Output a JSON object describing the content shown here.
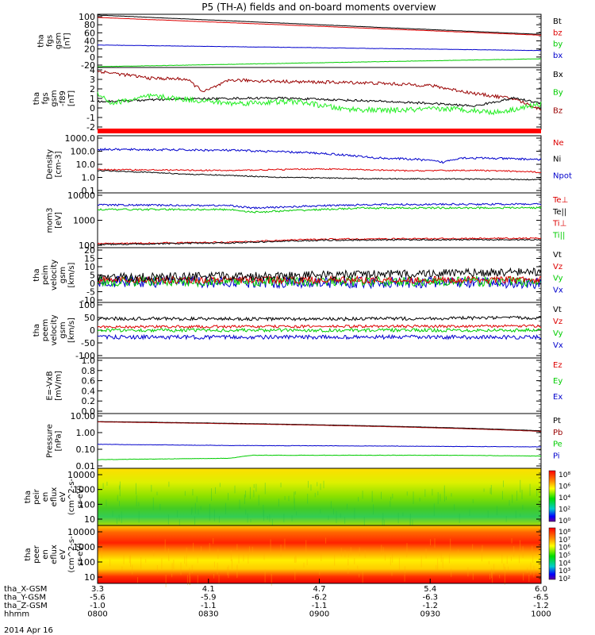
{
  "title": "P5 (TH-A) fields and on-board moments overview",
  "colors": {
    "black": "#000000",
    "red": "#dd0000",
    "dark_red": "#990000",
    "green": "#00cc00",
    "bright_green": "#22ee22",
    "blue": "#0000cc"
  },
  "chart_data": [
    {
      "id": "fgs",
      "type": "line",
      "ylabel": [
        "tha",
        "fgs",
        "gsm",
        "[nT]"
      ],
      "yticks": [
        "100",
        "80",
        "60",
        "40",
        "20",
        "0",
        "-20"
      ],
      "ylim": [
        -30,
        105
      ],
      "legend": [
        {
          "name": "Bt",
          "color": "#000000"
        },
        {
          "name": "bz",
          "color": "#dd0000"
        },
        {
          "name": "by",
          "color": "#00cc00"
        },
        {
          "name": "bx",
          "color": "#0000cc"
        }
      ],
      "series": [
        {
          "name": "Bt",
          "color": "#000000",
          "start": 103,
          "end": 54,
          "noise": 0.3
        },
        {
          "name": "bz",
          "color": "#dd0000",
          "start": 97,
          "end": 52,
          "noise": 0.3
        },
        {
          "name": "bx",
          "color": "#0000cc",
          "start": 27,
          "end": 13,
          "noise": 0.4
        },
        {
          "name": "by",
          "color": "#00cc00",
          "start": -28,
          "end": -8,
          "noise": 0.4
        }
      ]
    },
    {
      "id": "fgs_rel",
      "type": "line",
      "ylabel": [
        "tha",
        "fgs",
        "gsm",
        "-f89",
        "[nT]"
      ],
      "yticks": [
        "4",
        "3",
        "2",
        "1",
        "0",
        "-1",
        "-2"
      ],
      "ylim": [
        -2.6,
        4.3
      ],
      "legend": [
        {
          "name": "Bx",
          "color": "#000000"
        },
        {
          "name": "By",
          "color": "#00cc00"
        },
        {
          "name": "Bz",
          "color": "#990000"
        }
      ],
      "series": [
        {
          "name": "Bz",
          "color": "#990000",
          "points": [
            [
              0,
              3.9
            ],
            [
              0.12,
              3.1
            ],
            [
              0.2,
              3.0
            ],
            [
              0.24,
              1.6
            ],
            [
              0.3,
              2.9
            ],
            [
              0.45,
              2.7
            ],
            [
              0.6,
              2.6
            ],
            [
              0.75,
              2.3
            ],
            [
              0.85,
              1.4
            ],
            [
              0.94,
              0.8
            ],
            [
              1,
              -0.4
            ]
          ],
          "noise": 0.18
        },
        {
          "name": "Bx",
          "color": "#000000",
          "points": [
            [
              0,
              0.5
            ],
            [
              0.2,
              0.8
            ],
            [
              0.4,
              0.9
            ],
            [
              0.6,
              0.6
            ],
            [
              0.75,
              0.3
            ],
            [
              0.85,
              0.0
            ],
            [
              0.94,
              0.9
            ],
            [
              1,
              0.3
            ]
          ],
          "noise": 0.12
        },
        {
          "name": "By",
          "color": "#22ee22",
          "points": [
            [
              0,
              1.5
            ],
            [
              0.03,
              0.3
            ],
            [
              0.12,
              1.1
            ],
            [
              0.3,
              0.3
            ],
            [
              0.45,
              0.5
            ],
            [
              0.55,
              -0.3
            ],
            [
              0.65,
              -0.5
            ],
            [
              0.8,
              -0.3
            ],
            [
              0.9,
              -0.7
            ],
            [
              1,
              0.2
            ]
          ],
          "noise": 0.3
        }
      ]
    },
    {
      "id": "density",
      "type": "line",
      "log": true,
      "ylabel": [
        "Density",
        "[cm-3]"
      ],
      "yticks": [
        "1000.0",
        "100.0",
        "10.0",
        "1.0",
        "0.1"
      ],
      "ylim": [
        0.08,
        2000
      ],
      "legend": [
        {
          "name": "Ne",
          "color": "#dd0000"
        },
        {
          "name": "Ni",
          "color": "#000000"
        },
        {
          "name": "Npot",
          "color": "#0000cc"
        }
      ],
      "series": [
        {
          "name": "Npot",
          "color": "#0000cc",
          "points": [
            [
              0,
              180
            ],
            [
              0.3,
              150
            ],
            [
              0.5,
              90
            ],
            [
              0.62,
              40
            ],
            [
              0.72,
              30
            ],
            [
              0.78,
              18
            ],
            [
              0.82,
              40
            ],
            [
              1,
              30
            ]
          ],
          "noise": 0.08
        },
        {
          "name": "Ne",
          "color": "#dd0000",
          "points": [
            [
              0,
              5
            ],
            [
              0.3,
              4.2
            ],
            [
              0.5,
              5.6
            ],
            [
              0.7,
              4.0
            ],
            [
              0.85,
              4.4
            ],
            [
              1,
              3.1
            ]
          ],
          "noise": 0.05
        },
        {
          "name": "Ni",
          "color": "#000000",
          "points": [
            [
              0,
              4.2
            ],
            [
              0.2,
              2.2
            ],
            [
              0.4,
              1.3
            ],
            [
              0.6,
              1.0
            ],
            [
              0.8,
              0.95
            ],
            [
              1,
              0.85
            ]
          ],
          "noise": 0.04
        }
      ]
    },
    {
      "id": "temp",
      "type": "line",
      "log": true,
      "ylabel": [
        "mom3",
        "[eV]"
      ],
      "yticks": [
        "10000",
        "1000",
        "100"
      ],
      "ylim": [
        40,
        11000
      ],
      "legend": [
        {
          "name": "Te⊥",
          "color": "#dd0000"
        },
        {
          "name": "Te||",
          "color": "#000000"
        },
        {
          "name": "Ti⊥",
          "color": "#dd0000"
        },
        {
          "name": "Ti||",
          "color": "#00cc00"
        }
      ],
      "series": [
        {
          "name": "Ti⊥",
          "color": "#0000cc",
          "points": [
            [
              0,
              3200
            ],
            [
              0.3,
              3000
            ],
            [
              0.35,
              2300
            ],
            [
              0.6,
              3300
            ],
            [
              1,
              3500
            ]
          ],
          "noise": 0.04
        },
        {
          "name": "Ti||",
          "color": "#00cc00",
          "points": [
            [
              0,
              2000
            ],
            [
              0.3,
              2000
            ],
            [
              0.35,
              1500
            ],
            [
              0.6,
              2300
            ],
            [
              1,
              2400
            ]
          ],
          "noise": 0.04
        },
        {
          "name": "Te⊥",
          "color": "#dd0000",
          "points": [
            [
              0,
              60
            ],
            [
              0.3,
              70
            ],
            [
              0.5,
              95
            ],
            [
              0.7,
              100
            ],
            [
              1,
              105
            ]
          ],
          "noise": 0.03
        },
        {
          "name": "Te||",
          "color": "#000000",
          "points": [
            [
              0,
              55
            ],
            [
              0.3,
              65
            ],
            [
              0.5,
              85
            ],
            [
              0.7,
              90
            ],
            [
              1,
              90
            ]
          ],
          "noise": 0.03
        }
      ]
    },
    {
      "id": "peim",
      "type": "line",
      "ylabel": [
        "tha",
        "peim",
        "velocity",
        "gsm",
        "[km/s]"
      ],
      "yticks": [
        "20",
        "15",
        "10",
        "5",
        "0",
        "-5",
        "-10"
      ],
      "ylim": [
        -12,
        22
      ],
      "legend": [
        {
          "name": "Vt",
          "color": "#000000"
        },
        {
          "name": "Vz",
          "color": "#dd0000"
        },
        {
          "name": "Vy",
          "color": "#00cc00"
        },
        {
          "name": "Vx",
          "color": "#0000cc"
        }
      ],
      "series": [
        {
          "name": "Vx",
          "color": "#0000cc",
          "points": [
            [
              0,
              1
            ],
            [
              1,
              0
            ]
          ],
          "noise": 3.5
        },
        {
          "name": "Vy",
          "color": "#00cc00",
          "points": [
            [
              0,
              1
            ],
            [
              1,
              1
            ]
          ],
          "noise": 3.0
        },
        {
          "name": "Vz",
          "color": "#dd0000",
          "points": [
            [
              0,
              2
            ],
            [
              1,
              2
            ]
          ],
          "noise": 2.2
        },
        {
          "name": "Vt",
          "color": "#000000",
          "points": [
            [
              0,
              3.5
            ],
            [
              0.5,
              5
            ],
            [
              1,
              7
            ]
          ],
          "noise": 2.6
        }
      ]
    },
    {
      "id": "peem",
      "type": "line",
      "ylabel": [
        "tha",
        "peem",
        "velocity",
        "gsm",
        "[km/s]"
      ],
      "yticks": [
        "100",
        "50",
        "0",
        "-50",
        "-100"
      ],
      "ylim": [
        -100,
        100
      ],
      "legend": [
        {
          "name": "Vt",
          "color": "#000000"
        },
        {
          "name": "Vz",
          "color": "#dd0000"
        },
        {
          "name": "Vy",
          "color": "#00cc00"
        },
        {
          "name": "Vx",
          "color": "#0000cc"
        }
      ],
      "series": [
        {
          "name": "Vx",
          "color": "#0000cc",
          "points": [
            [
              0,
              -25
            ],
            [
              1,
              -25
            ]
          ],
          "noise": 7
        },
        {
          "name": "Vy",
          "color": "#00cc00",
          "points": [
            [
              0,
              0
            ],
            [
              1,
              0
            ]
          ],
          "noise": 6
        },
        {
          "name": "Vz",
          "color": "#dd0000",
          "points": [
            [
              0,
              12
            ],
            [
              1,
              15
            ]
          ],
          "noise": 5
        },
        {
          "name": "Vt",
          "color": "#000000",
          "points": [
            [
              0,
              42
            ],
            [
              0.5,
              40
            ],
            [
              1,
              45
            ]
          ],
          "noise": 6
        }
      ]
    },
    {
      "id": "efield",
      "type": "line",
      "ylabel": [
        "E=-VxB",
        "[mV/m]"
      ],
      "yticks": [
        "1.0",
        "0.8",
        "0.6",
        "0.4",
        "0.2",
        "0.0"
      ],
      "ylim": [
        0,
        1
      ],
      "legend": [
        {
          "name": "Ez",
          "color": "#dd0000"
        },
        {
          "name": "Ey",
          "color": "#00cc00"
        },
        {
          "name": "Ex",
          "color": "#0000cc"
        }
      ],
      "series": []
    },
    {
      "id": "pressure",
      "type": "line",
      "log": true,
      "ylabel": [
        "Pressure",
        "[nPa]"
      ],
      "yticks": [
        "10.00",
        "1.00",
        "0.10",
        "0.01"
      ],
      "ylim": [
        0.009,
        12
      ],
      "legend": [
        {
          "name": "Pt",
          "color": "#000000"
        },
        {
          "name": "Pb",
          "color": "#990000"
        },
        {
          "name": "Pe",
          "color": "#00cc00"
        },
        {
          "name": "Pi",
          "color": "#0000cc"
        }
      ],
      "series": [
        {
          "name": "Pt",
          "color": "#000000",
          "points": [
            [
              0,
              4.2
            ],
            [
              1,
              1.25
            ]
          ],
          "noise": 0.005
        },
        {
          "name": "Pb",
          "color": "#990000",
          "points": [
            [
              0,
              4.0
            ],
            [
              1,
              1.15
            ]
          ],
          "noise": 0.005
        },
        {
          "name": "Pi",
          "color": "#0000cc",
          "points": [
            [
              0,
              0.21
            ],
            [
              0.3,
              0.18
            ],
            [
              0.6,
              0.17
            ],
            [
              1,
              0.15
            ]
          ],
          "noise": 0.01
        },
        {
          "name": "Pe",
          "color": "#00cc00",
          "points": [
            [
              0,
              0.028
            ],
            [
              0.3,
              0.034
            ],
            [
              0.35,
              0.05
            ],
            [
              0.5,
              0.05
            ],
            [
              0.8,
              0.05
            ],
            [
              1,
              0.045
            ]
          ],
          "noise": 0.01
        }
      ]
    },
    {
      "id": "peir",
      "type": "heatmap",
      "ylabel": [
        "tha",
        "peir",
        "en",
        "eflux",
        "eV",
        "(cm^2-s-",
        "sr-eV)"
      ],
      "yticks": [
        "10000",
        "1000",
        "100",
        "10"
      ],
      "colorbar_ticks": [
        "10⁸",
        "10⁶",
        "10⁴",
        "10²",
        "10⁰"
      ]
    },
    {
      "id": "peer",
      "type": "heatmap",
      "ylabel": [
        "tha",
        "peer",
        "en",
        "eflux",
        "eV",
        "(cm^2-s-",
        "sr-eV)"
      ],
      "yticks": [
        "10000",
        "1000",
        "100",
        "10"
      ],
      "colorbar_ticks": [
        "10⁸",
        "10⁷",
        "10⁶",
        "10⁵",
        "10⁴",
        "10³",
        "10²"
      ]
    }
  ],
  "xaxis": {
    "rows": [
      {
        "label": "tha_X-GSM",
        "values": [
          "3.3",
          "4.1",
          "4.7",
          "5.4",
          "6.0"
        ]
      },
      {
        "label": "tha_Y-GSM",
        "values": [
          "-5.6",
          "-5.9",
          "-6.2",
          "-6.3",
          "-6.5"
        ]
      },
      {
        "label": "tha_Z-GSM",
        "values": [
          "-1.0",
          "-1.1",
          "-1.1",
          "-1.2",
          "-1.2"
        ]
      },
      {
        "label": "hhmm",
        "values": [
          "0800",
          "0830",
          "0900",
          "0930",
          "1000"
        ]
      }
    ],
    "date": "2014 Apr 16"
  }
}
